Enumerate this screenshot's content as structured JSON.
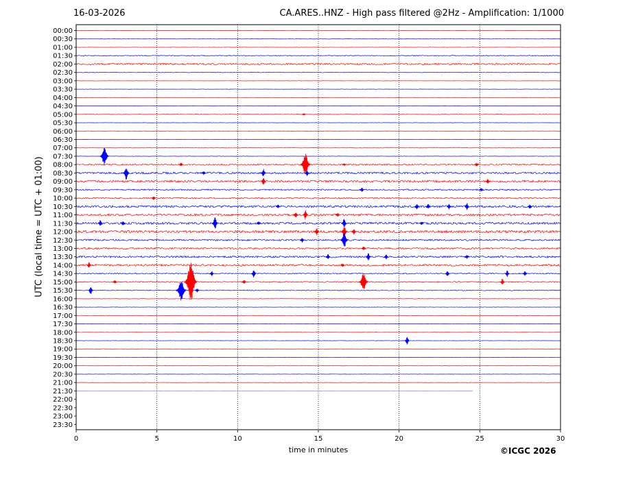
{
  "header": {
    "date": "16-03-2026",
    "title": "CA.ARES..HNZ - High pass filtered @2Hz - Amplification: 1/1000"
  },
  "footer": {
    "copyright": "©ICGC 2026"
  },
  "colors": {
    "odd_trace": "#ff0000",
    "even_trace": "#0000ff",
    "axis": "#000000"
  },
  "chart_data": {
    "type": "line",
    "title": "CA.ARES..HNZ - High pass filtered @2Hz - Amplification: 1/1000",
    "xlabel": "time in minutes",
    "ylabel": "UTC (local time = UTC + 01:00)",
    "xlim": [
      0,
      30
    ],
    "x_ticks": [
      0,
      5,
      10,
      15,
      20,
      25,
      30
    ],
    "vertical_gridlines": [
      5,
      10,
      15,
      20,
      25
    ],
    "grid": "dotted vertical",
    "rows": [
      "00:00",
      "00:30",
      "01:00",
      "01:30",
      "02:00",
      "02:30",
      "03:00",
      "03:30",
      "04:00",
      "04:30",
      "05:00",
      "05:30",
      "06:00",
      "06:30",
      "07:00",
      "07:30",
      "08:00",
      "08:30",
      "09:00",
      "09:30",
      "10:00",
      "10:30",
      "11:00",
      "11:30",
      "12:00",
      "12:30",
      "13:00",
      "13:30",
      "14:00",
      "14:30",
      "15:00",
      "15:30",
      "16:00",
      "16:30",
      "17:00",
      "17:30",
      "18:00",
      "18:30",
      "19:00",
      "19:30",
      "20:00",
      "20:30",
      "21:00",
      "21:30",
      "22:00",
      "22:30",
      "23:00",
      "23:30"
    ],
    "last_trace": {
      "row": "21:30",
      "end_minute": 24.6
    },
    "noise_level": [
      0.2,
      0.2,
      0.2,
      0.6,
      1.2,
      0.4,
      0.2,
      0.2,
      0.2,
      0.2,
      0.3,
      0.2,
      0.2,
      0.2,
      0.2,
      0.2,
      1.0,
      1.4,
      1.6,
      1.0,
      1.0,
      1.6,
      1.6,
      1.6,
      1.8,
      1.2,
      1.2,
      1.4,
      1.4,
      0.8,
      0.8,
      0.6,
      0.3,
      0.2,
      0.2,
      0.2,
      0.2,
      0.2,
      0.2,
      0.2,
      0.2,
      0.2,
      0.2,
      0.1,
      0,
      0,
      0,
      0
    ],
    "events": [
      {
        "row": "05:00",
        "minute": 14.1,
        "amplitude": 1.5
      },
      {
        "row": "07:30",
        "minute": 1.75,
        "amplitude": 14
      },
      {
        "row": "08:00",
        "minute": 6.5,
        "amplitude": 3
      },
      {
        "row": "08:00",
        "minute": 14.2,
        "amplitude": 16
      },
      {
        "row": "08:00",
        "minute": 16.6,
        "amplitude": 2
      },
      {
        "row": "08:00",
        "minute": 24.8,
        "amplitude": 3
      },
      {
        "row": "08:30",
        "minute": 3.1,
        "amplitude": 10
      },
      {
        "row": "08:30",
        "minute": 7.9,
        "amplitude": 3
      },
      {
        "row": "08:30",
        "minute": 11.6,
        "amplitude": 7
      },
      {
        "row": "08:30",
        "minute": 14.3,
        "amplitude": 5
      },
      {
        "row": "09:00",
        "minute": 11.6,
        "amplitude": 6
      },
      {
        "row": "09:00",
        "minute": 25.5,
        "amplitude": 4
      },
      {
        "row": "09:30",
        "minute": 17.7,
        "amplitude": 4
      },
      {
        "row": "09:30",
        "minute": 25.1,
        "amplitude": 3
      },
      {
        "row": "10:00",
        "minute": 4.8,
        "amplitude": 3
      },
      {
        "row": "10:30",
        "minute": 12.5,
        "amplitude": 3
      },
      {
        "row": "10:30",
        "minute": 21.1,
        "amplitude": 5
      },
      {
        "row": "10:30",
        "minute": 21.8,
        "amplitude": 4
      },
      {
        "row": "10:30",
        "minute": 23.1,
        "amplitude": 4
      },
      {
        "row": "10:30",
        "minute": 24.2,
        "amplitude": 6
      },
      {
        "row": "10:30",
        "minute": 28.1,
        "amplitude": 4
      },
      {
        "row": "11:00",
        "minute": 13.6,
        "amplitude": 5
      },
      {
        "row": "11:00",
        "minute": 14.2,
        "amplitude": 7
      },
      {
        "row": "11:00",
        "minute": 16.2,
        "amplitude": 3
      },
      {
        "row": "11:30",
        "minute": 1.5,
        "amplitude": 5
      },
      {
        "row": "11:30",
        "minute": 2.9,
        "amplitude": 4
      },
      {
        "row": "11:30",
        "minute": 8.6,
        "amplitude": 9
      },
      {
        "row": "11:30",
        "minute": 11.3,
        "amplitude": 3
      },
      {
        "row": "11:30",
        "minute": 16.6,
        "amplitude": 8
      },
      {
        "row": "11:30",
        "minute": 21.4,
        "amplitude": 3
      },
      {
        "row": "12:00",
        "minute": 14.9,
        "amplitude": 6
      },
      {
        "row": "12:00",
        "minute": 16.6,
        "amplitude": 9
      },
      {
        "row": "12:00",
        "minute": 17.2,
        "amplitude": 5
      },
      {
        "row": "12:30",
        "minute": 14.0,
        "amplitude": 4
      },
      {
        "row": "12:30",
        "minute": 16.6,
        "amplitude": 12
      },
      {
        "row": "13:00",
        "minute": 17.8,
        "amplitude": 3
      },
      {
        "row": "13:30",
        "minute": 15.6,
        "amplitude": 5
      },
      {
        "row": "13:30",
        "minute": 18.1,
        "amplitude": 6
      },
      {
        "row": "13:30",
        "minute": 19.2,
        "amplitude": 4
      },
      {
        "row": "13:30",
        "minute": 24.2,
        "amplitude": 3
      },
      {
        "row": "14:00",
        "minute": 0.8,
        "amplitude": 5
      },
      {
        "row": "14:00",
        "minute": 16.5,
        "amplitude": 3
      },
      {
        "row": "14:30",
        "minute": 8.4,
        "amplitude": 4
      },
      {
        "row": "14:30",
        "minute": 11.0,
        "amplitude": 7
      },
      {
        "row": "14:30",
        "minute": 23.0,
        "amplitude": 5
      },
      {
        "row": "14:30",
        "minute": 26.7,
        "amplitude": 5
      },
      {
        "row": "14:30",
        "minute": 27.8,
        "amplitude": 4
      },
      {
        "row": "15:00",
        "minute": 2.4,
        "amplitude": 3
      },
      {
        "row": "15:00",
        "minute": 7.1,
        "amplitude": 30
      },
      {
        "row": "15:00",
        "minute": 10.4,
        "amplitude": 3
      },
      {
        "row": "15:00",
        "minute": 17.8,
        "amplitude": 14
      },
      {
        "row": "15:00",
        "minute": 26.4,
        "amplitude": 5
      },
      {
        "row": "15:30",
        "minute": 0.9,
        "amplitude": 7
      },
      {
        "row": "15:30",
        "minute": 6.5,
        "amplitude": 16
      },
      {
        "row": "15:30",
        "minute": 7.5,
        "amplitude": 3
      },
      {
        "row": "18:30",
        "minute": 20.5,
        "amplitude": 7
      }
    ]
  }
}
